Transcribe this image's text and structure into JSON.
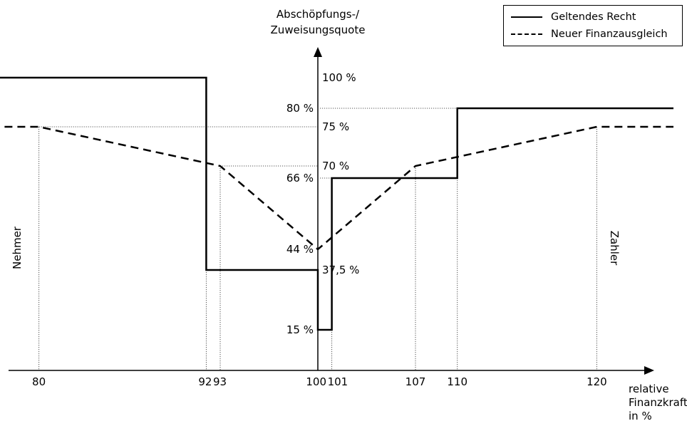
{
  "chart_data": {
    "type": "line",
    "ylabel_line1": "Abschöpfungs-/",
    "ylabel_line2": "Zuweisungsquote",
    "xlabel_line1": "relative",
    "xlabel_line2": "Finanzkraft",
    "xlabel_line3": "in %",
    "left_side_label": "Nehmer",
    "right_side_label": "Zahler",
    "x_ticks": [
      "80",
      "92",
      "93",
      "100",
      "101",
      "107",
      "110",
      "120"
    ],
    "y_tick_labels": [
      "100 %",
      "80 %",
      "75 %",
      "70 %",
      "66 %",
      "44 %",
      "37,5 %",
      "15 %"
    ],
    "grid": false,
    "legend_position": "top-right",
    "series": [
      {
        "name": "Geltendes Recht",
        "style": "solid",
        "points": [
          [
            75.7,
            100
          ],
          [
            92,
            100
          ],
          [
            92,
            37.5
          ],
          [
            100,
            37.5
          ],
          [
            100,
            15
          ],
          [
            101,
            15
          ],
          [
            101,
            66
          ],
          [
            110,
            66
          ],
          [
            110,
            80
          ],
          [
            125.5,
            80
          ]
        ]
      },
      {
        "name": "Neuer Finanzausgleich",
        "style": "dashed",
        "points": [
          [
            75.7,
            75
          ],
          [
            80,
            75
          ],
          [
            93,
            70
          ],
          [
            100,
            44
          ],
          [
            107,
            70
          ],
          [
            120,
            75
          ],
          [
            125.5,
            75
          ]
        ]
      }
    ]
  }
}
